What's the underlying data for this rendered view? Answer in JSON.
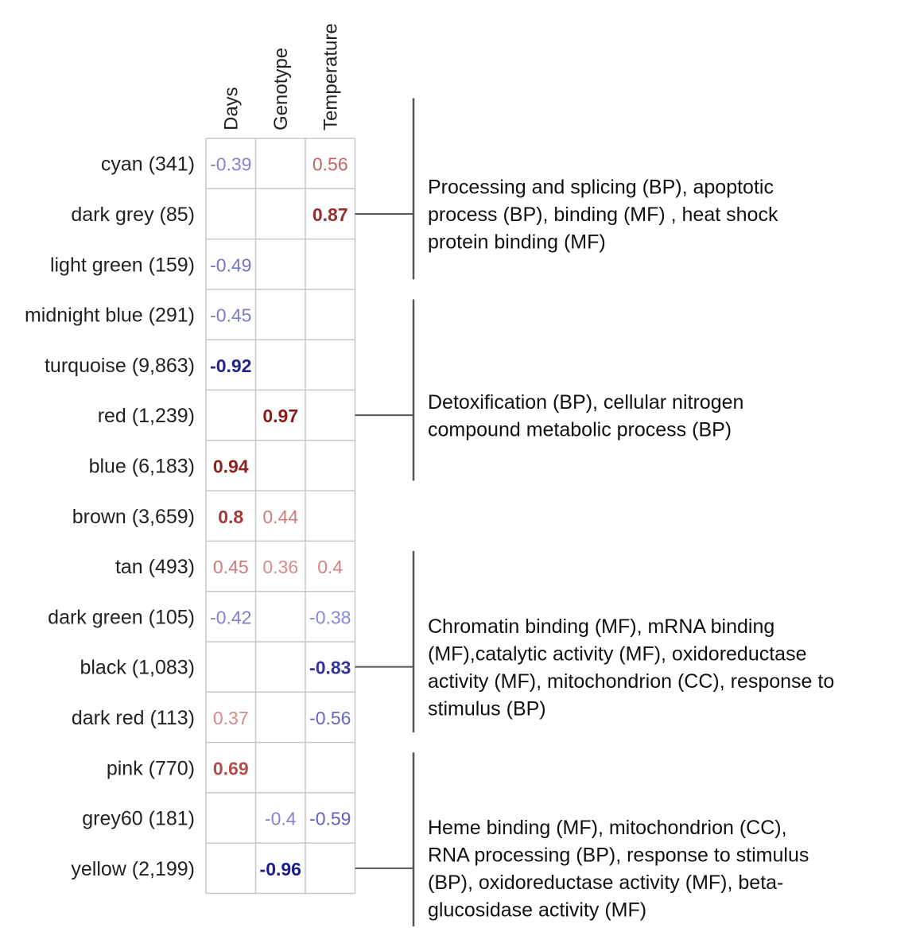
{
  "chart_data": {
    "type": "heatmap",
    "columns": [
      "Days",
      "Genotype",
      "Temperature"
    ],
    "rows": [
      {
        "label": "cyan (341)",
        "values": [
          -0.39,
          null,
          0.56
        ]
      },
      {
        "label": "dark grey (85)",
        "values": [
          null,
          null,
          0.87
        ]
      },
      {
        "label": "light green (159)",
        "values": [
          -0.49,
          null,
          null
        ]
      },
      {
        "label": "midnight blue (291)",
        "values": [
          -0.45,
          null,
          null
        ]
      },
      {
        "label": "turquoise (9,863)",
        "values": [
          -0.92,
          null,
          null
        ]
      },
      {
        "label": "red (1,239)",
        "values": [
          null,
          0.97,
          null
        ]
      },
      {
        "label": "blue (6,183)",
        "values": [
          0.94,
          null,
          null
        ]
      },
      {
        "label": "brown (3,659)",
        "values": [
          0.8,
          0.44,
          null
        ]
      },
      {
        "label": "tan (493)",
        "values": [
          0.45,
          0.36,
          0.4
        ]
      },
      {
        "label": "dark green (105)",
        "values": [
          -0.42,
          null,
          -0.38
        ]
      },
      {
        "label": "black (1,083)",
        "values": [
          null,
          null,
          -0.83
        ]
      },
      {
        "label": "dark red (113)",
        "values": [
          0.37,
          null,
          -0.56
        ]
      },
      {
        "label": "pink (770)",
        "values": [
          0.69,
          null,
          null
        ]
      },
      {
        "label": "grey60 (181)",
        "values": [
          null,
          -0.4,
          -0.59
        ]
      },
      {
        "label": "yellow (2,199)",
        "values": [
          null,
          -0.96,
          null
        ]
      }
    ],
    "annotations": [
      {
        "row": 1,
        "lines": [
          "Processing and splicing (BP), apoptotic",
          "process (BP), binding (MF) , heat shock",
          "protein binding (MF)"
        ]
      },
      {
        "row": 5,
        "lines": [
          "Detoxification (BP), cellular nitrogen",
          "compound metabolic process (BP)"
        ]
      },
      {
        "row": 10,
        "lines": [
          "Chromatin binding (MF), mRNA binding",
          "(MF),catalytic activity (MF), oxidoreductase",
          "activity (MF), mitochondrion (CC), response to",
          "stimulus (BP)"
        ]
      },
      {
        "row": 14,
        "lines": [
          "Heme binding (MF), mitochondrion (CC),",
          "RNA processing (BP), response to stimulus",
          "(BP), oxidoreductase activity (MF), beta-",
          "glucosidase activity (MF)"
        ]
      }
    ],
    "colors": {
      "positive": "#8b1a1a",
      "negative": "#1a1a8c",
      "grid": "#c8c8c8",
      "bracket": "#555555"
    }
  }
}
